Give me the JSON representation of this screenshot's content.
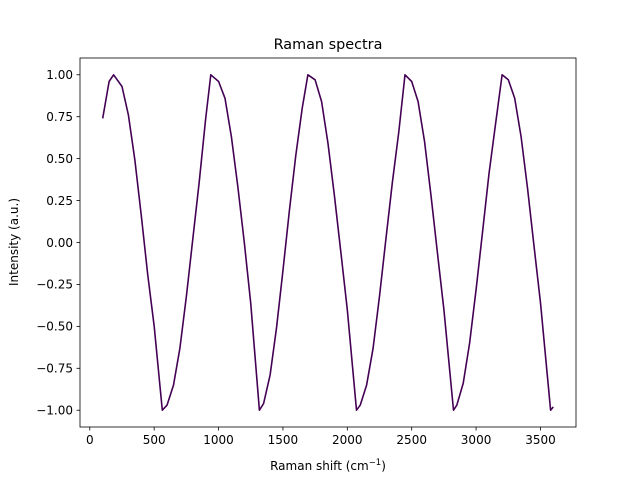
{
  "chart_data": {
    "type": "line",
    "title": "Raman spectra",
    "xlabel_main": "Raman shift (cm",
    "xlabel_sup": "−1",
    "xlabel_tail": ")",
    "ylabel": "Intensity (a.u.)",
    "xlim": [
      -76,
      3776
    ],
    "ylim": [
      -1.1,
      1.1
    ],
    "xticks": [
      0,
      500,
      1000,
      1500,
      2000,
      2500,
      3000,
      3500
    ],
    "xtick_labels": [
      "0",
      "500",
      "1000",
      "1500",
      "2000",
      "2500",
      "3000",
      "3500"
    ],
    "yticks": [
      -1.0,
      -0.75,
      -0.5,
      -0.25,
      0.0,
      0.25,
      0.5,
      0.75,
      1.0
    ],
    "ytick_labels": [
      "−1.00",
      "−0.75",
      "−0.50",
      "−0.25",
      "0.00",
      "0.25",
      "0.50",
      "0.75",
      "1.00"
    ],
    "grid": false,
    "series": [
      {
        "color": "#440154",
        "x": [
          100,
          150,
          185,
          250,
          300,
          350,
          400,
          450,
          500,
          563,
          600,
          650,
          700,
          750,
          800,
          850,
          900,
          940,
          1000,
          1050,
          1100,
          1150,
          1200,
          1250,
          1317,
          1350,
          1400,
          1450,
          1500,
          1550,
          1600,
          1650,
          1694,
          1750,
          1800,
          1850,
          1900,
          1950,
          2000,
          2071,
          2100,
          2150,
          2200,
          2250,
          2300,
          2350,
          2400,
          2448,
          2500,
          2550,
          2600,
          2650,
          2700,
          2750,
          2825,
          2850,
          2900,
          2950,
          3000,
          3050,
          3100,
          3150,
          3202,
          3250,
          3300,
          3350,
          3400,
          3450,
          3500,
          3579,
          3600
        ],
        "y": [
          0.74,
          0.96,
          1.0,
          0.93,
          0.76,
          0.49,
          0.16,
          -0.19,
          -0.5,
          -1.0,
          -0.97,
          -0.85,
          -0.63,
          -0.32,
          0.02,
          0.36,
          0.74,
          1.0,
          0.96,
          0.86,
          0.63,
          0.33,
          0.0,
          -0.36,
          -1.0,
          -0.96,
          -0.79,
          -0.51,
          -0.17,
          0.19,
          0.52,
          0.8,
          1.0,
          0.97,
          0.84,
          0.59,
          0.28,
          -0.06,
          -0.4,
          -1.0,
          -0.97,
          -0.85,
          -0.63,
          -0.32,
          0.02,
          0.36,
          0.66,
          1.0,
          0.96,
          0.84,
          0.6,
          0.28,
          -0.06,
          -0.4,
          -1.0,
          -0.97,
          -0.84,
          -0.6,
          -0.28,
          0.06,
          0.41,
          0.7,
          1.0,
          0.97,
          0.86,
          0.63,
          0.32,
          -0.02,
          -0.36,
          -1.0,
          -0.98
        ]
      }
    ]
  }
}
